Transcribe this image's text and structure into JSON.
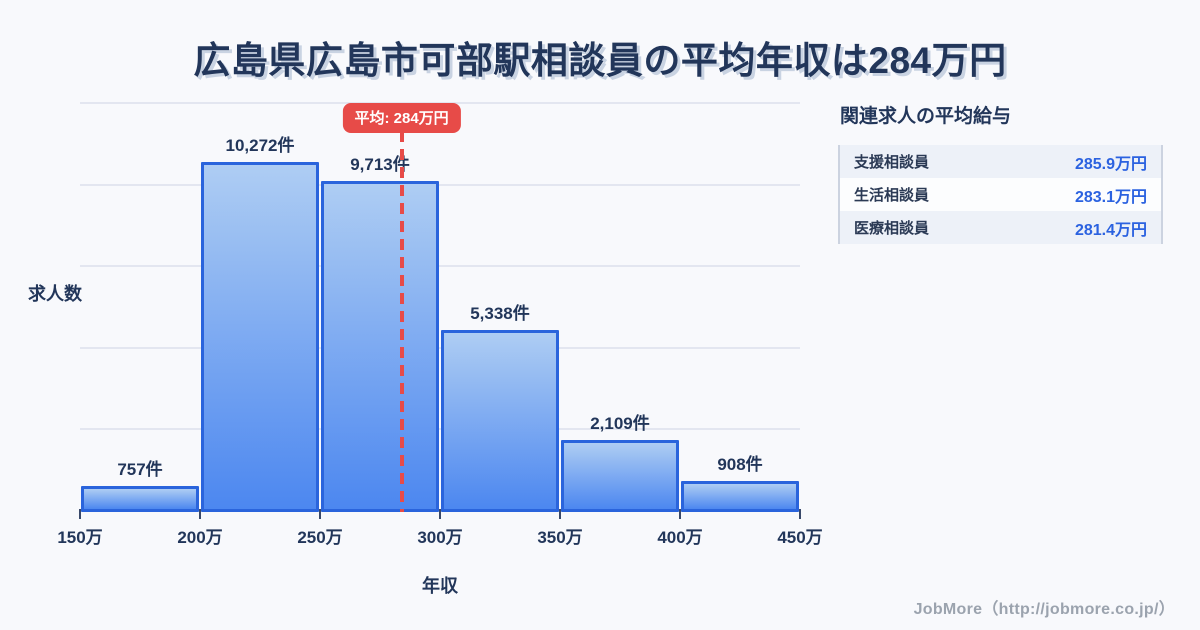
{
  "title": "広島県広島市可部駅相談員の平均年収は284万円",
  "chart_data": {
    "type": "bar",
    "subtype": "histogram",
    "bin_edges": [
      150,
      200,
      250,
      300,
      350,
      400,
      450
    ],
    "bin_edge_labels": [
      "150万",
      "200万",
      "250万",
      "300万",
      "350万",
      "400万",
      "450万"
    ],
    "values": [
      757,
      10272,
      9713,
      5338,
      2109,
      908
    ],
    "value_labels": [
      "757件",
      "10,272件",
      "9,713件",
      "5,338件",
      "2,109件",
      "908件"
    ],
    "xlabel": "年収",
    "ylabel": "求人数",
    "ylim": [
      0,
      12250
    ],
    "grid": "horizontal",
    "average": {
      "value": 284,
      "label": "平均: 284万円"
    },
    "colors": {
      "bar_fill_top": "#aecdf3",
      "bar_fill_bottom": "#4c87f0",
      "bar_border": "#2a64dc",
      "average_line": "#e74b48",
      "grid_line": "#e3e6f0"
    }
  },
  "panel": {
    "title": "関連求人の平均給与",
    "rows": [
      {
        "label": "支援相談員",
        "value": "285.9万円"
      },
      {
        "label": "生活相談員",
        "value": "283.1万円"
      },
      {
        "label": "医療相談員",
        "value": "281.4万円"
      }
    ]
  },
  "footer": {
    "text": "JobMore（http://jobmore.co.jp/）"
  }
}
